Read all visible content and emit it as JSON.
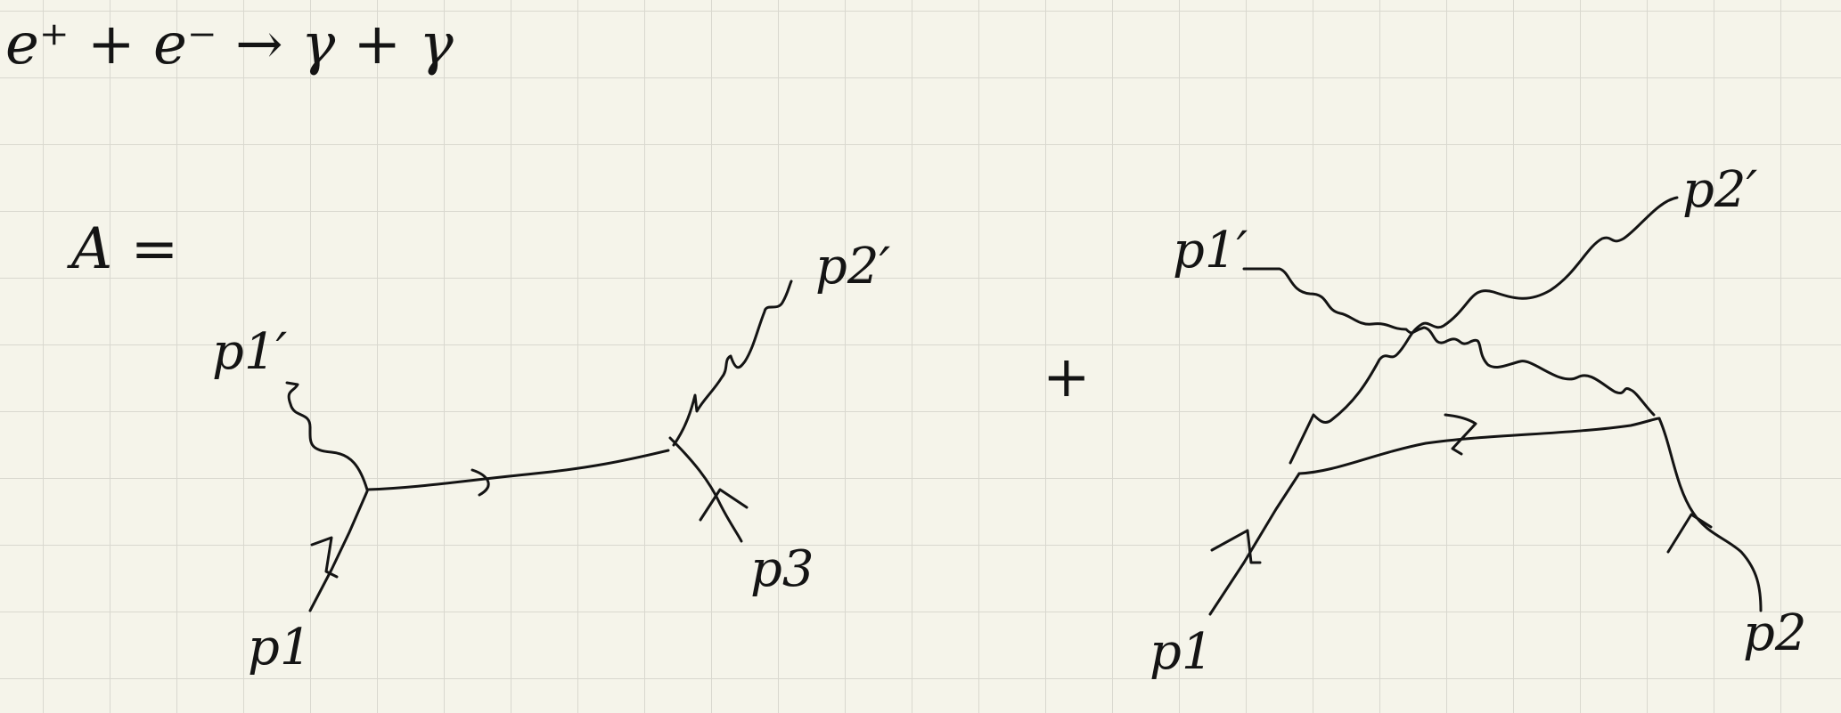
{
  "equation": {
    "reaction": "e⁺ + e⁻ → γ + γ"
  },
  "amplitude": {
    "lhs": "A =",
    "plus": "+"
  },
  "diagram1": {
    "labels": {
      "p1": "p1",
      "p1_prime": "p1′",
      "p2_prime": "p2′",
      "p3": "p3"
    }
  },
  "diagram2": {
    "labels": {
      "p1": "p1",
      "p1_prime": "p1′",
      "p2_prime": "p2′",
      "p2": "p2"
    }
  },
  "colors": {
    "paper": "#f5f4ea",
    "grid": "#d9d8cf",
    "ink": "#141414"
  }
}
